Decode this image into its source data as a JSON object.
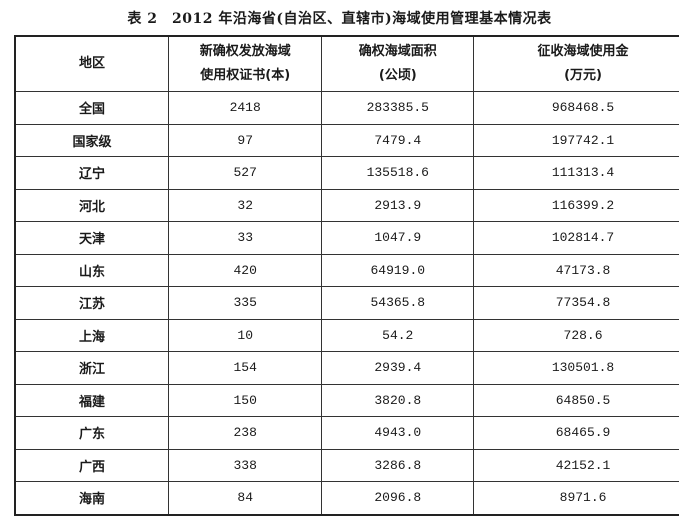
{
  "title": "表 2　2012 年沿海省(自治区、直辖市)海域使用管理基本情况表",
  "headers": [
    {
      "line1": "地区",
      "line2": ""
    },
    {
      "line1": "新确权发放海域",
      "line2": "使用权证书(本)"
    },
    {
      "line1": "确权海域面积",
      "line2": "(公顷)"
    },
    {
      "line1": "征收海域使用金",
      "line2": "(万元)"
    }
  ],
  "rows": [
    [
      "全国",
      "2418",
      "283385.5",
      "968468.5"
    ],
    [
      "国家级",
      "97",
      "7479.4",
      "197742.1"
    ],
    [
      "辽宁",
      "527",
      "135518.6",
      "111313.4"
    ],
    [
      "河北",
      "32",
      "2913.9",
      "116399.2"
    ],
    [
      "天津",
      "33",
      "1047.9",
      "102814.7"
    ],
    [
      "山东",
      "420",
      "64919.0",
      "47173.8"
    ],
    [
      "江苏",
      "335",
      "54365.8",
      "77354.8"
    ],
    [
      "上海",
      "10",
      "54.2",
      "728.6"
    ],
    [
      "浙江",
      "154",
      "2939.4",
      "130501.8"
    ],
    [
      "福建",
      "150",
      "3820.8",
      "64850.5"
    ],
    [
      "广东",
      "238",
      "4943.0",
      "68465.9"
    ],
    [
      "广西",
      "338",
      "3286.8",
      "42152.1"
    ],
    [
      "海南",
      "84",
      "2096.8",
      "8971.6"
    ]
  ]
}
